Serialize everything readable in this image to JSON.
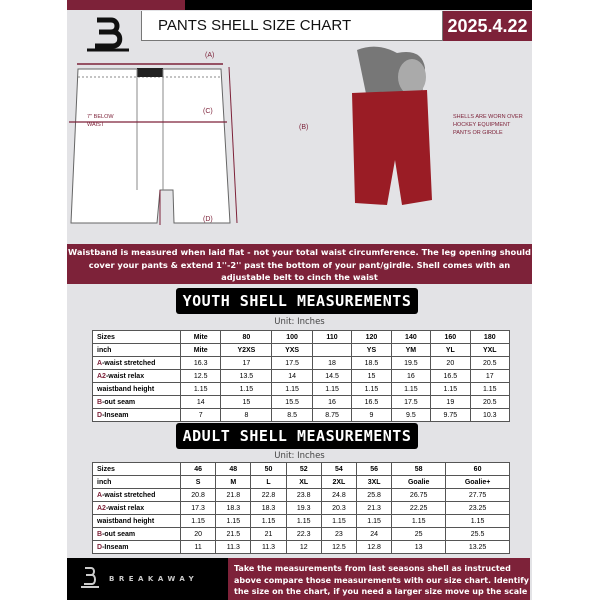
{
  "header": {
    "title": "PANTS SHELL SIZE CHART",
    "date": "2025.4.22",
    "logo": "B"
  },
  "diagram": {
    "label_a": "(A)",
    "label_b": "(B)",
    "label_c": "(C)",
    "label_d": "(D)",
    "below_waist": "7'' BELOW WAIST",
    "note": "SHELLS ARE WORN OVER HOCKEY EQUIPMENT PANTS OR GIRDLE"
  },
  "info_band": "Waistband is measured when laid flat - not your total waist circumference. The leg opening should cover your pants & extend 1''-2'' past the bottom of your pant/girdle. Shell comes with an adjustable belt to cinch the waist",
  "youth": {
    "title": "YOUTH SHELL MEASUREMENTS",
    "unit": "Unit: Inches",
    "rows": [
      {
        "label": "Sizes",
        "values": [
          "Mite",
          "80",
          "100",
          "110",
          "120",
          "140",
          "160",
          "180"
        ]
      },
      {
        "label": "inch",
        "values": [
          "Mite",
          "Y2XS",
          "YXS",
          "",
          "YS",
          "YM",
          "YL",
          "YXL"
        ]
      },
      {
        "mark": "A",
        "label": "-waist stretched",
        "values": [
          "16.3",
          "17",
          "17.5",
          "18",
          "18.5",
          "19.5",
          "20",
          "20.5"
        ]
      },
      {
        "mark": "A2",
        "label": "-waist relax",
        "values": [
          "12.5",
          "13.5",
          "14",
          "14.5",
          "15",
          "16",
          "16.5",
          "17"
        ]
      },
      {
        "label": "waistband height",
        "values": [
          "1.15",
          "1.15",
          "1.15",
          "1.15",
          "1.15",
          "1.15",
          "1.15",
          "1.15"
        ]
      },
      {
        "mark": "B",
        "label": "-out seam",
        "values": [
          "14",
          "15",
          "15.5",
          "16",
          "16.5",
          "17.5",
          "19",
          "20.5"
        ]
      },
      {
        "mark": "D",
        "label": "-Inseam",
        "values": [
          "7",
          "8",
          "8.5",
          "8.75",
          "9",
          "9.5",
          "9.75",
          "10.3"
        ]
      }
    ]
  },
  "adult": {
    "title": "ADULT SHELL MEASUREMENTS",
    "unit": "Unit: Inches",
    "rows": [
      {
        "label": "Sizes",
        "values": [
          "46",
          "48",
          "50",
          "52",
          "54",
          "56",
          "58",
          "60"
        ]
      },
      {
        "label": "inch",
        "values": [
          "S",
          "M",
          "L",
          "XL",
          "2XL",
          "3XL",
          "Goalie",
          "Goalie+"
        ]
      },
      {
        "mark": "A",
        "label": "-waist stretched",
        "values": [
          "20.8",
          "21.8",
          "22.8",
          "23.8",
          "24.8",
          "25.8",
          "26.75",
          "27.75"
        ]
      },
      {
        "mark": "A2",
        "label": "-waist relax",
        "values": [
          "17.3",
          "18.3",
          "18.3",
          "19.3",
          "20.3",
          "21.3",
          "22.25",
          "23.25"
        ]
      },
      {
        "label": "waistband height",
        "values": [
          "1.15",
          "1.15",
          "1.15",
          "1.15",
          "1.15",
          "1.15",
          "1.15",
          "1.15"
        ]
      },
      {
        "mark": "B",
        "label": "-out seam",
        "values": [
          "20",
          "21.5",
          "21",
          "22.3",
          "23",
          "24",
          "25",
          "25.5"
        ]
      },
      {
        "mark": "D",
        "label": "-Inseam",
        "values": [
          "11",
          "11.3",
          "11.3",
          "12",
          "12.5",
          "12.8",
          "13",
          "13.25"
        ]
      }
    ]
  },
  "footer": {
    "brand": "BREAKAWAY",
    "text": "Take the measurements from last seasons shell as instructed above compare those measurements  with our size chart. Identify the size on the chart, if you need a larger size move up the scale on the chart"
  },
  "colors": {
    "accent": "#7d2239",
    "background": "#e3e3e6"
  }
}
